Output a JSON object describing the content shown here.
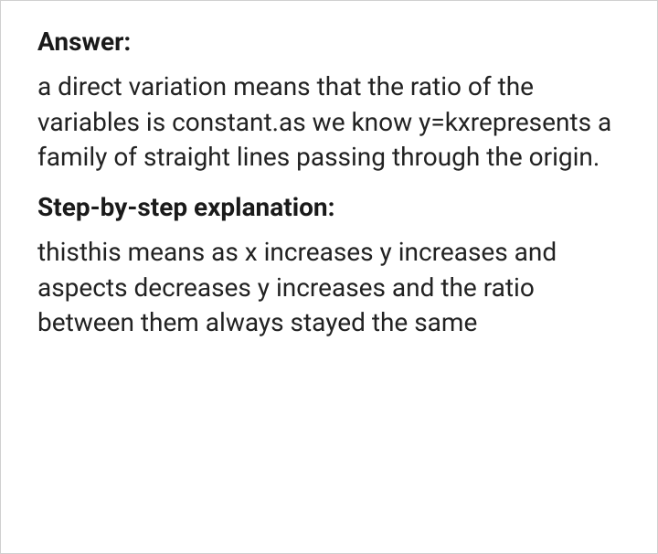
{
  "answer": {
    "heading": "Answer:",
    "body": "a direct variation means that the ratio of the variables is constant.as we know y=kxrepresents a family of straight lines passing through the origin."
  },
  "explanation": {
    "heading": "Step-by-step explanation:",
    "body": "thisthis means as x increases y increases and aspects decreases y increases and the ratio between them always stayed the same"
  },
  "colors": {
    "text": "#1a1a1a",
    "body_text": "#222222",
    "background": "#ffffff",
    "border": "#d0d0d0"
  },
  "typography": {
    "heading_fontsize": 28,
    "heading_weight": 700,
    "body_fontsize": 28,
    "body_weight": 400,
    "line_height": 1.38
  }
}
